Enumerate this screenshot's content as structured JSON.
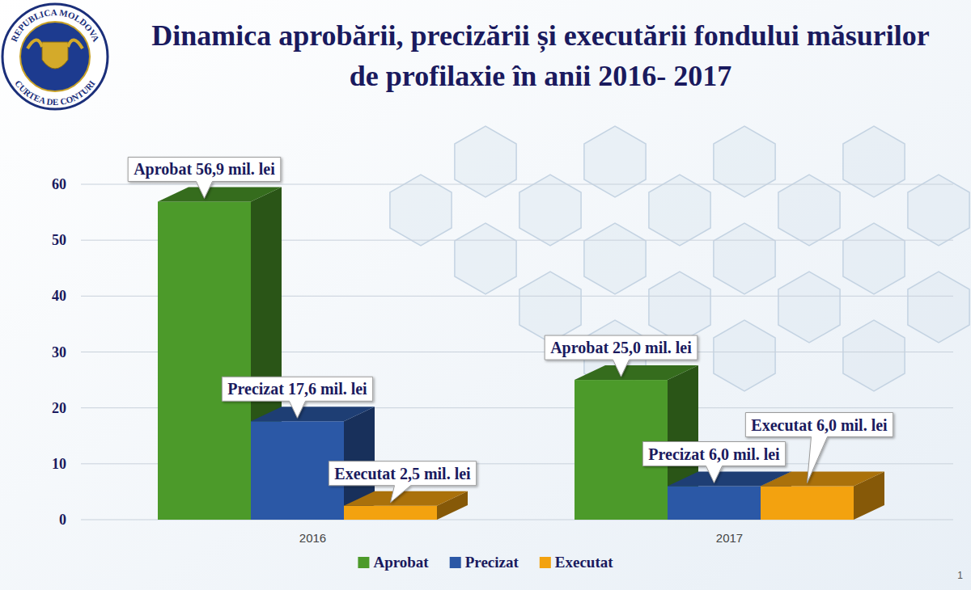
{
  "chart_data": {
    "type": "bar",
    "title": "Dinamica aprobării, precizării și executării fondului măsurilor de profilaxie în anii 2016- 2017",
    "categories": [
      "2016",
      "2017"
    ],
    "series": [
      {
        "name": "Aprobat",
        "color": "#4c9a2a",
        "values": [
          56.9,
          25.0
        ],
        "value_labels": [
          "Aprobat 56,9 mil. lei",
          "Aprobat 25,0 mil. lei"
        ]
      },
      {
        "name": "Precizat",
        "color": "#2b58a6",
        "values": [
          17.6,
          6.0
        ],
        "value_labels": [
          "Precizat 17,6 mil. lei",
          "Precizat 6,0 mil. lei"
        ]
      },
      {
        "name": "Executat",
        "color": "#f3a20f",
        "values": [
          2.5,
          6.0
        ],
        "value_labels": [
          "Executat 2,5 mil. lei",
          "Executat 6,0 mil. lei"
        ]
      }
    ],
    "ylim": [
      0,
      60
    ],
    "yticks": [
      0,
      10,
      20,
      30,
      40,
      50,
      60
    ],
    "grid": true,
    "legend": "bottom",
    "data_labels": true,
    "annotations": [
      "REPUBLICA MOLDOVA",
      "CURTEA DE CONTURI",
      "1"
    ]
  }
}
